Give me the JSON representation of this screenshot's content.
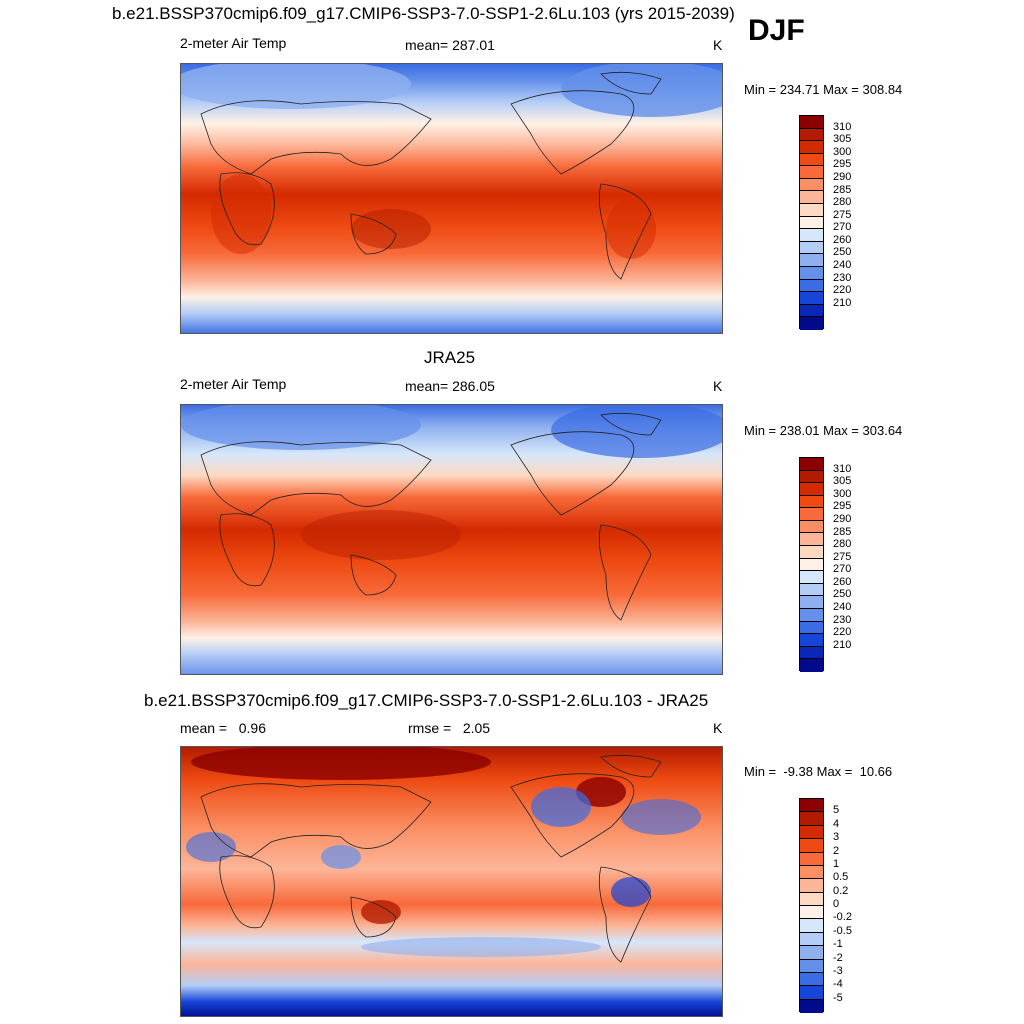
{
  "header": {
    "title": "b.e21.BSSP370cmip6.f09_g17.CMIP6-SSP3-7.0-SSP1-2.6Lu.103 (yrs 2015-2039)",
    "season": "DJF"
  },
  "panel1": {
    "variable": "2-meter Air Temp",
    "mean": "mean= 287.01",
    "units": "K",
    "minmax": "Min = 234.71 Max = 308.84"
  },
  "panel2": {
    "title": "JRA25",
    "variable": "2-meter Air Temp",
    "mean": "mean= 286.05",
    "units": "K",
    "minmax": "Min = 238.01 Max = 303.64"
  },
  "panel3": {
    "title": "b.e21.BSSP370cmip6.f09_g17.CMIP6-SSP3-7.0-SSP1-2.6Lu.103 - JRA25",
    "mean": "mean =   0.96",
    "rmse": "rmse =   2.05",
    "units": "K",
    "minmax": "Min =  -9.38 Max =  10.66"
  },
  "colorbar_abs": {
    "labels": [
      "310",
      "305",
      "300",
      "295",
      "290",
      "285",
      "280",
      "275",
      "270",
      "260",
      "250",
      "240",
      "230",
      "220",
      "210"
    ],
    "colors": [
      "#8b0000",
      "#b31b00",
      "#d42a00",
      "#ee4a12",
      "#f86a3a",
      "#fb8f64",
      "#fcb598",
      "#fdd9c2",
      "#fff1e6",
      "#d6e6fb",
      "#b4cdf6",
      "#8fb0ef",
      "#6490ea",
      "#3a6ce4",
      "#1745d8",
      "#0a27b8",
      "#000a8a"
    ]
  },
  "colorbar_diff": {
    "labels": [
      "5",
      "4",
      "3",
      "2",
      "1",
      "0.5",
      "0.2",
      "0",
      "-0.2",
      "-0.5",
      "-1",
      "-2",
      "-3",
      "-4",
      "-5"
    ],
    "colors": [
      "#8b0000",
      "#b31b00",
      "#d42a00",
      "#ee4a12",
      "#f86a3a",
      "#fb8f64",
      "#fcb598",
      "#fdd9c2",
      "#fff1e6",
      "#d6e6fb",
      "#b4cdf6",
      "#8fb0ef",
      "#6490ea",
      "#3a6ce4",
      "#1745d8",
      "#000a8a"
    ]
  }
}
